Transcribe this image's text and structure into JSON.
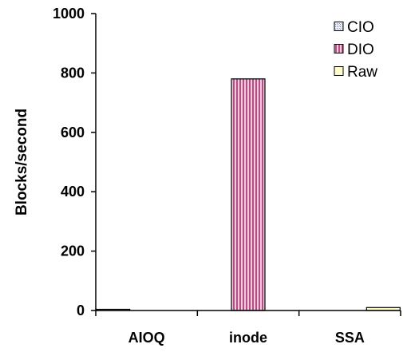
{
  "chart_data": {
    "type": "bar",
    "categories": [
      "AIOQ",
      "inode",
      "SSA"
    ],
    "series": [
      {
        "name": "CIO",
        "values": [
          3,
          0,
          0
        ]
      },
      {
        "name": "DIO",
        "values": [
          0,
          780,
          0
        ]
      },
      {
        "name": "Raw",
        "values": [
          0,
          0,
          10
        ]
      }
    ],
    "ylabel": "Blocks/second",
    "xlabel": "",
    "ylim": [
      0,
      1000
    ],
    "yticks": [
      0,
      200,
      400,
      600,
      800,
      1000
    ],
    "grid": false,
    "legend_position": "top-right",
    "colors": {
      "CIO": "#e4e8f2",
      "DIO": "#d493b4",
      "Raw": "#ffffcc"
    }
  }
}
